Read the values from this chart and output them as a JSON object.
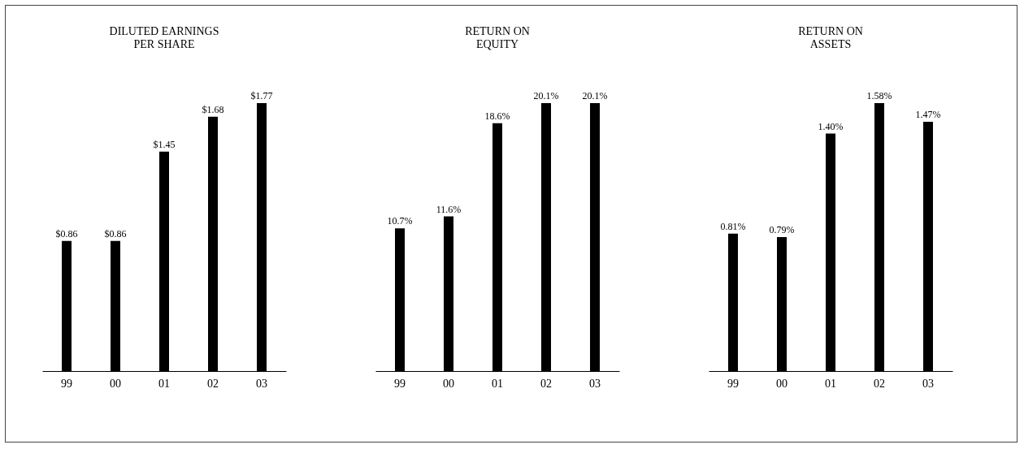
{
  "chart_data": [
    {
      "type": "bar",
      "title": "DILUTED EARNINGS\nPER SHARE",
      "categories": [
        "99",
        "00",
        "01",
        "02",
        "03"
      ],
      "values": [
        0.86,
        0.86,
        1.45,
        1.68,
        1.77
      ],
      "value_labels": [
        "$0.86",
        "$0.86",
        "$1.45",
        "$1.68",
        "$1.77"
      ],
      "color": "#000000"
    },
    {
      "type": "bar",
      "title": "RETURN ON\nEQUITY",
      "categories": [
        "99",
        "00",
        "01",
        "02",
        "03"
      ],
      "values": [
        10.7,
        11.6,
        18.6,
        20.1,
        20.1
      ],
      "value_labels": [
        "10.7%",
        "11.6%",
        "18.6%",
        "20.1%",
        "20.1%"
      ],
      "color": "#000000"
    },
    {
      "type": "bar",
      "title": "RETURN ON\nASSETS",
      "categories": [
        "99",
        "00",
        "01",
        "02",
        "03"
      ],
      "values": [
        0.81,
        0.79,
        1.4,
        1.58,
        1.47
      ],
      "value_labels": [
        "0.81%",
        "0.79%",
        "1.40%",
        "1.58%",
        "1.47%"
      ],
      "color": "#000000"
    }
  ]
}
